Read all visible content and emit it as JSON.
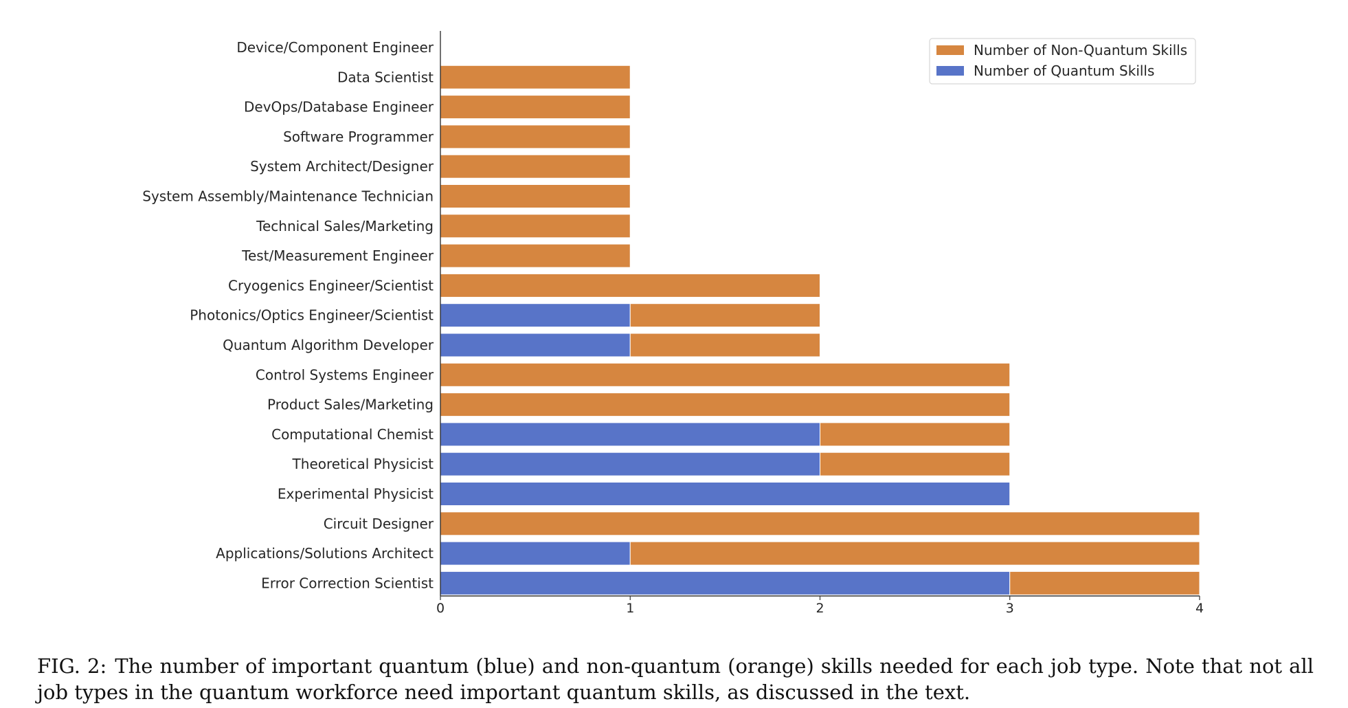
{
  "chart_data": {
    "type": "bar",
    "orientation": "horizontal",
    "stacked": true,
    "categories": [
      "Device/Component Engineer",
      "Data Scientist",
      "DevOps/Database Engineer",
      "Software Programmer",
      "System Architect/Designer",
      "System Assembly/Maintenance Technician",
      "Technical Sales/Marketing",
      "Test/Measurement Engineer",
      "Cryogenics Engineer/Scientist",
      "Photonics/Optics Engineer/Scientist",
      "Quantum Algorithm Developer",
      "Control Systems Engineer",
      "Product Sales/Marketing",
      "Computational Chemist",
      "Theoretical Physicist",
      "Experimental Physicist",
      "Circuit Designer",
      "Applications/Solutions Architect",
      "Error Correction Scientist"
    ],
    "series": [
      {
        "name": "Number of Quantum Skills",
        "color": "#5874c8",
        "values": [
          0,
          0,
          0,
          0,
          0,
          0,
          0,
          0,
          0,
          1,
          1,
          0,
          0,
          2,
          2,
          3,
          0,
          1,
          3
        ]
      },
      {
        "name": "Number of Non-Quantum Skills",
        "color": "#d68640",
        "values": [
          0,
          1,
          1,
          1,
          1,
          1,
          1,
          1,
          2,
          1,
          1,
          3,
          3,
          1,
          1,
          0,
          4,
          3,
          1
        ]
      }
    ],
    "legend_order": [
      "Number of Non-Quantum Skills",
      "Number of Quantum Skills"
    ],
    "xticks": [
      "0",
      "1",
      "2",
      "3",
      "4"
    ],
    "xlim": [
      0,
      4
    ],
    "xlabel": "",
    "ylabel": "",
    "title": "",
    "grid": false,
    "legend_position": "top-right"
  },
  "caption": {
    "label": "FIG. 2:",
    "text": "The number of important quantum (blue) and non-quantum (orange) skills needed for each job type. Note that not all job types in the quantum workforce need important quantum skills, as discussed in the text."
  }
}
